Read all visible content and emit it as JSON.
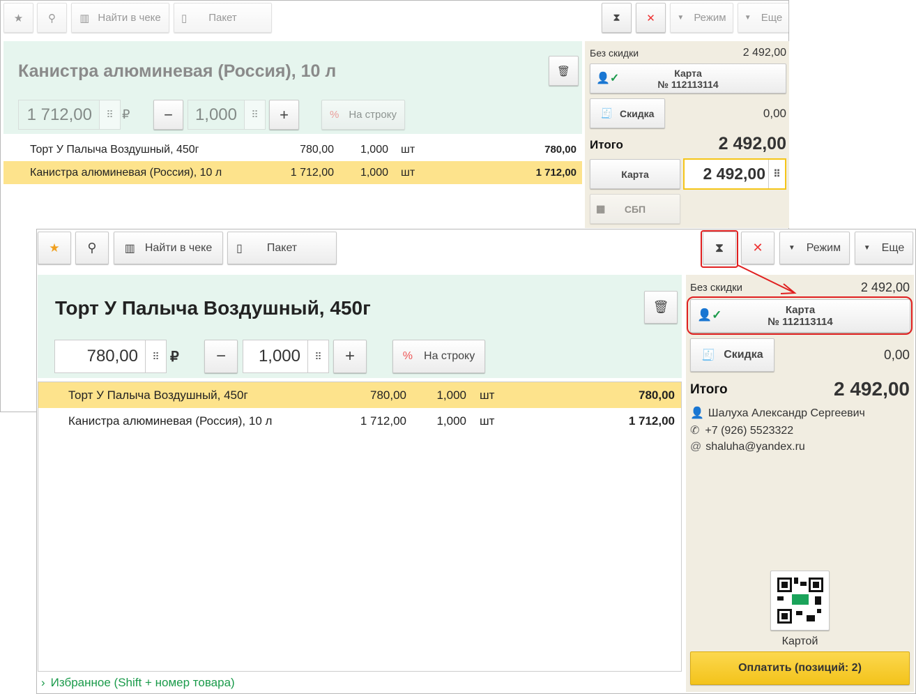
{
  "colors": {
    "accent": "#f5c518",
    "selected_row": "#fde38c",
    "product_panel": "#e6f5ee",
    "side_panel": "#f1ede1",
    "annotation": "#e02020"
  },
  "back": {
    "toolbar": {
      "find": "Найти в чеке",
      "package": "Пакет",
      "mode": "Режим",
      "more": "Еще"
    },
    "product": {
      "title": "Канистра алюминевая (Россия), 10 л",
      "price": "1 712,00",
      "currency": "₽",
      "qty": "1,000",
      "per_line": "На строку"
    },
    "rows": [
      {
        "name": "Торт У Палыча Воздушный, 450г",
        "price": "780,00",
        "qty": "1,000",
        "unit": "шт",
        "sum": "780,00"
      },
      {
        "name": "Канистра алюминевая (Россия), 10 л",
        "price": "1 712,00",
        "qty": "1,000",
        "unit": "шт",
        "sum": "1 712,00"
      }
    ],
    "side": {
      "no_discount_label": "Без скидки",
      "no_discount": "2 492,00",
      "card_title": "Карта",
      "card_number": "№ 112113114",
      "discount": "Скидка",
      "discount_value": "0,00",
      "total_label": "Итого",
      "total": "2 492,00",
      "pay_card": "Карта",
      "pay_amount": "2 492,00",
      "sbp": "СБП"
    }
  },
  "front": {
    "toolbar": {
      "find": "Найти в чеке",
      "package": "Пакет",
      "mode": "Режим",
      "more": "Еще"
    },
    "product": {
      "title": "Торт У Палыча Воздушный, 450г",
      "price": "780,00",
      "currency": "₽",
      "qty": "1,000",
      "per_line": "На строку"
    },
    "rows": [
      {
        "name": "Торт У Палыча Воздушный, 450г",
        "price": "780,00",
        "qty": "1,000",
        "unit": "шт",
        "sum": "780,00"
      },
      {
        "name": "Канистра алюминевая (Россия), 10 л",
        "price": "1 712,00",
        "qty": "1,000",
        "unit": "шт",
        "sum": "1 712,00"
      }
    ],
    "favorites": "Избранное (Shift + номер товара)",
    "side": {
      "no_discount_label": "Без скидки",
      "no_discount": "2 492,00",
      "card_title": "Карта",
      "card_number": "№ 112113114",
      "discount": "Скидка",
      "discount_value": "0,00",
      "total_label": "Итого",
      "total": "2 492,00",
      "customer_name": "Шалуха Александр Сергеевич",
      "phone": "+7 (926) 5523322",
      "email": "shaluha@yandex.ru",
      "qr_label": "Картой",
      "pay": "Оплатить (позиций: 2)"
    }
  }
}
